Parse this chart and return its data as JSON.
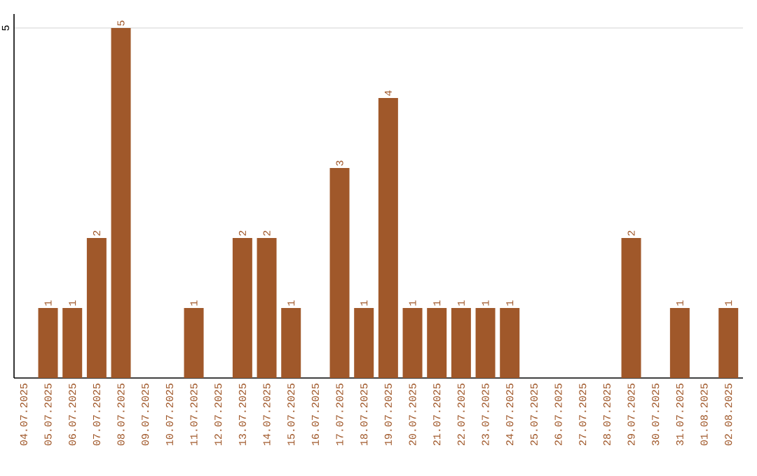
{
  "chart_data": {
    "type": "bar",
    "categories": [
      "04.07.2025",
      "05.07.2025",
      "06.07.2025",
      "07.07.2025",
      "08.07.2025",
      "09.07.2025",
      "10.07.2025",
      "11.07.2025",
      "12.07.2025",
      "13.07.2025",
      "14.07.2025",
      "15.07.2025",
      "16.07.2025",
      "17.07.2025",
      "18.07.2025",
      "19.07.2025",
      "20.07.2025",
      "21.07.2025",
      "22.07.2025",
      "23.07.2025",
      "24.07.2025",
      "25.07.2025",
      "26.07.2025",
      "27.07.2025",
      "28.07.2025",
      "29.07.2025",
      "30.07.2025",
      "31.07.2025",
      "01.08.2025",
      "02.08.2025"
    ],
    "values": [
      0,
      1,
      1,
      2,
      5,
      0,
      0,
      1,
      0,
      2,
      2,
      1,
      0,
      3,
      1,
      4,
      1,
      1,
      1,
      1,
      1,
      0,
      0,
      0,
      0,
      2,
      0,
      1,
      0,
      1
    ],
    "value_labels": [
      null,
      "1",
      "1",
      "2",
      "5",
      null,
      null,
      "1",
      null,
      "2",
      "2",
      "1",
      null,
      "3",
      "1",
      "4",
      "1",
      "1",
      "1",
      "1",
      "1",
      null,
      null,
      null,
      null,
      "2",
      null,
      "1",
      null,
      "1"
    ],
    "color": "#a0582a",
    "ylim": [
      0,
      5.2
    ],
    "yticks": [
      5
    ],
    "grid": "y"
  }
}
